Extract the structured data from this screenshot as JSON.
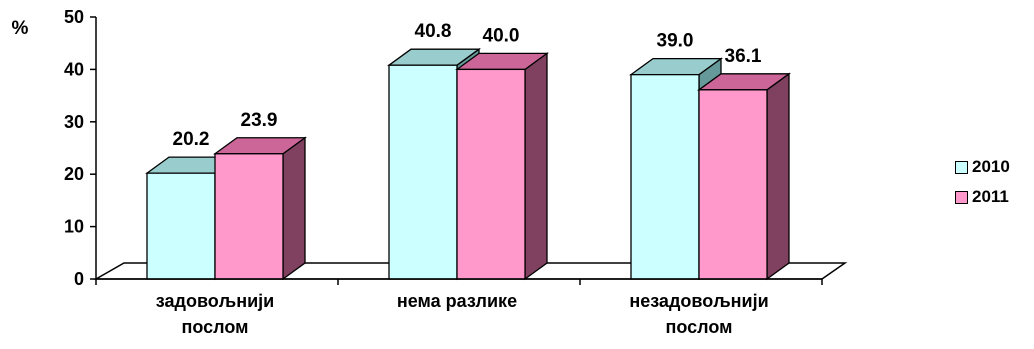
{
  "chart_data": {
    "type": "bar",
    "title": "",
    "xlabel": "",
    "ylabel": "%",
    "ylim": [
      0,
      50
    ],
    "yticks": [
      0,
      10,
      20,
      30,
      40,
      50
    ],
    "categories": [
      [
        "задовољнији",
        "послом"
      ],
      [
        "нема разлике"
      ],
      [
        "незадовољнији",
        "послом"
      ]
    ],
    "series": [
      {
        "name": "2010",
        "values": [
          20.2,
          40.8,
          39.0
        ],
        "labels": [
          "20.2",
          "40.8",
          "39.0"
        ],
        "color": "#ccffff"
      },
      {
        "name": "2011",
        "values": [
          23.9,
          40.0,
          36.1
        ],
        "labels": [
          "23.9",
          "40.0",
          "36.1"
        ],
        "color": "#ff99cc"
      }
    ],
    "legend_position": "right",
    "grid": false,
    "style": "3d-column"
  }
}
